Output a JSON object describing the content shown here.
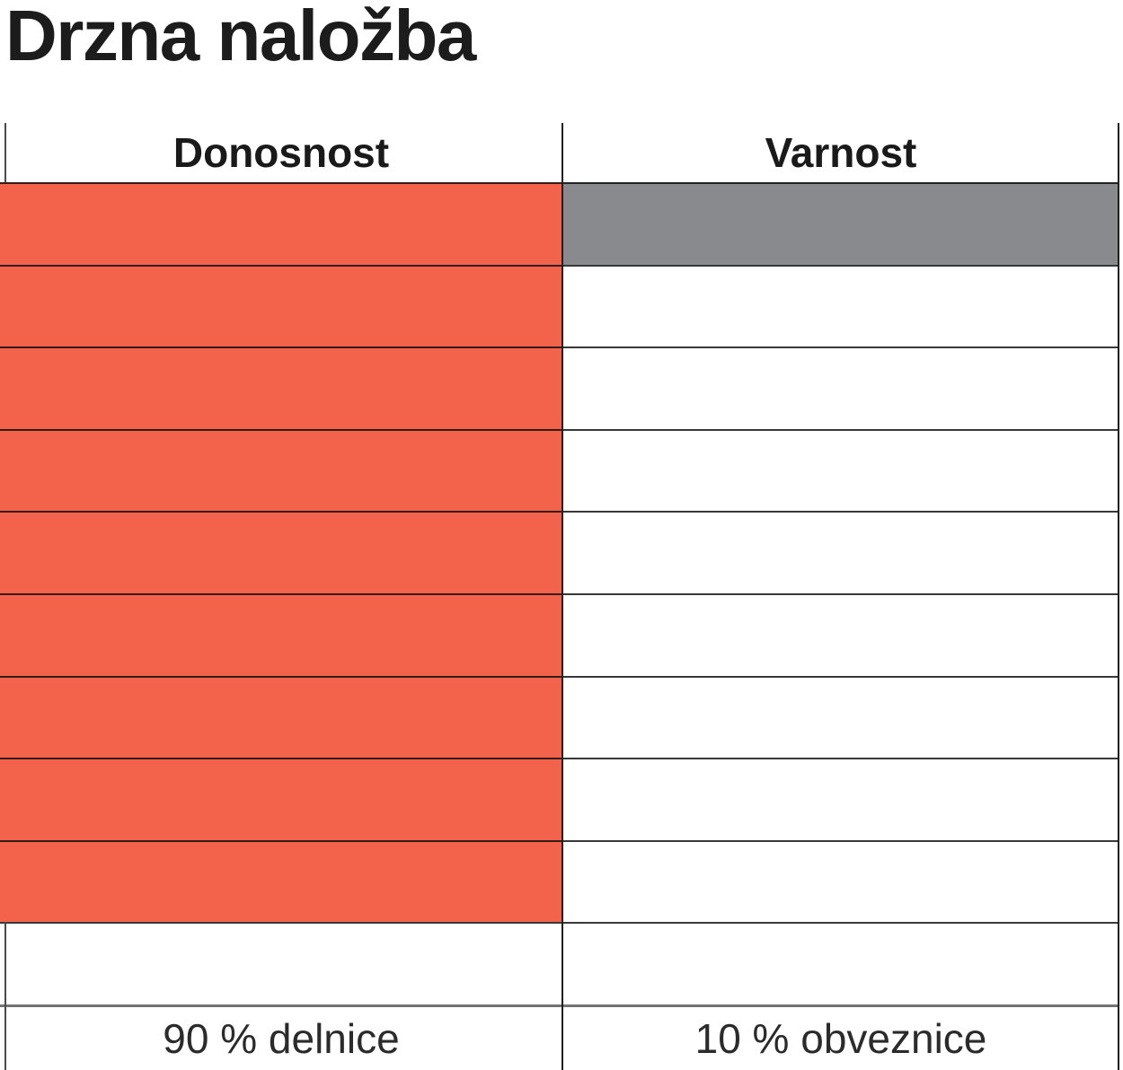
{
  "title": "Drzna naložba",
  "columns": {
    "left": {
      "header": "Donosnost",
      "label": "90 % delnice"
    },
    "right": {
      "header": "Varnost",
      "label": "10 % obveznice"
    }
  },
  "chart_data": {
    "type": "table",
    "title": "Drzna naložba",
    "categories": [
      "Donosnost",
      "Varnost"
    ],
    "values": [
      9,
      1
    ],
    "max_cells": 10,
    "annotations": [
      "90 % delnice",
      "10 % obveznice"
    ],
    "colors": [
      "#F3624B",
      "#898A8E"
    ],
    "grid": true,
    "legend_position": "none"
  }
}
